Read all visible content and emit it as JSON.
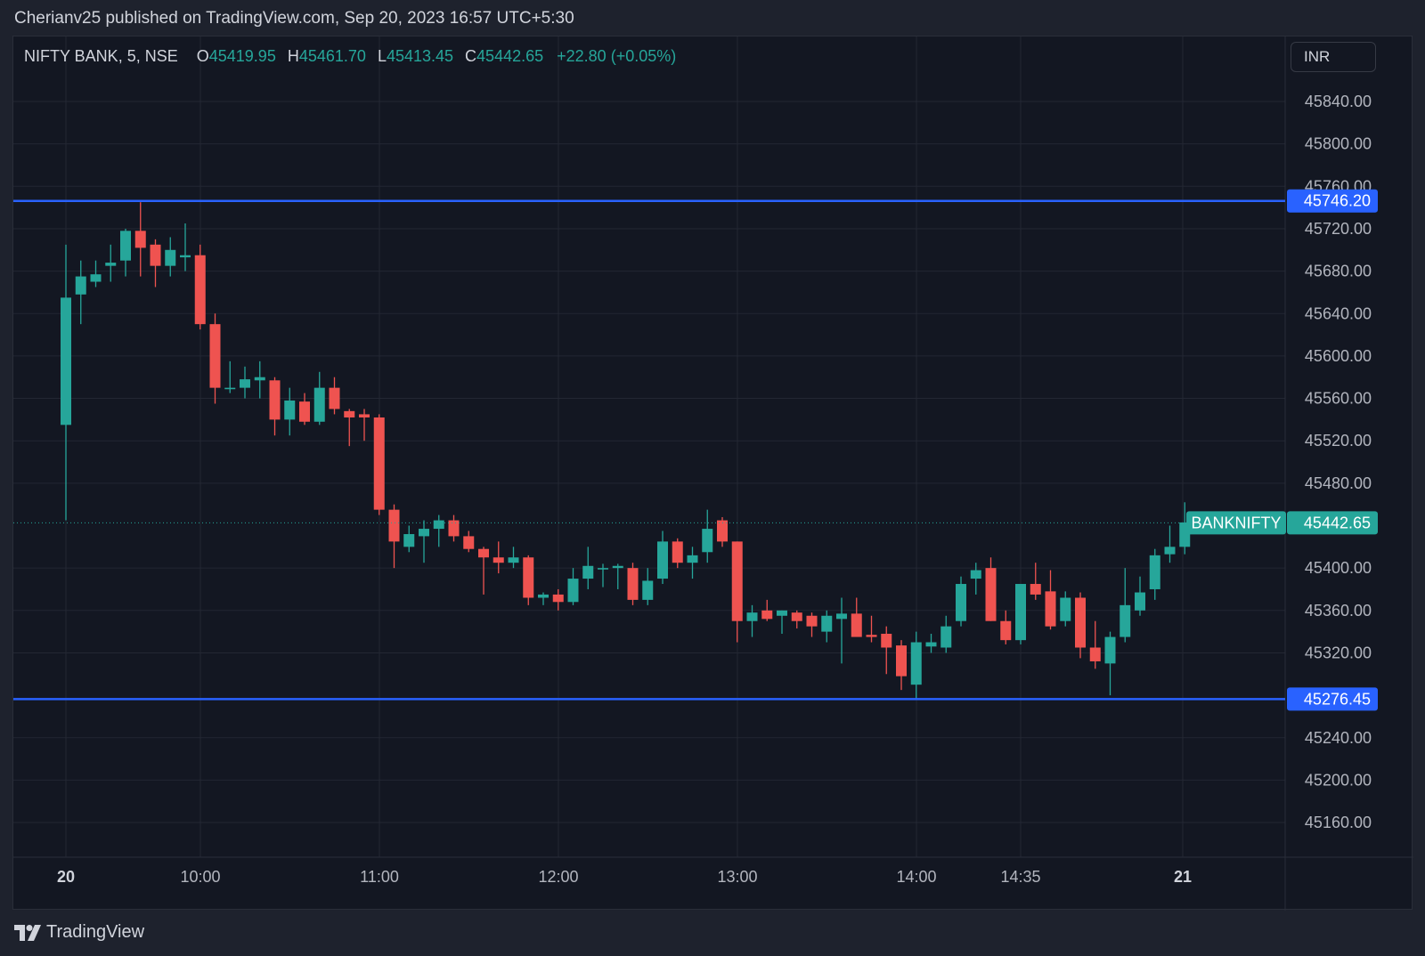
{
  "header": {
    "publisher_line": "Cherianv25 published on TradingView.com, Sep 20, 2023 16:57 UTC+5:30"
  },
  "legend": {
    "symbol": "NIFTY BANK, 5, NSE",
    "open_label": "O",
    "open": "45419.95",
    "high_label": "H",
    "high": "45461.70",
    "low_label": "L",
    "low": "45413.45",
    "close_label": "C",
    "close": "45442.65",
    "change": "+22.80 (+0.05%)"
  },
  "currency_button": "INR",
  "footer": {
    "brand": "TradingView"
  },
  "colors": {
    "background": "#131722",
    "up": "#26a69a",
    "down": "#ef5350",
    "level_line": "#2962ff",
    "grid": "#232733"
  },
  "chart_data": {
    "type": "candlestick",
    "x_ticks": [
      "20",
      "10:00",
      "11:00",
      "12:00",
      "13:00",
      "14:00",
      "14:35",
      "21"
    ],
    "y_ticks": [
      "45160.00",
      "45200.00",
      "45240.00",
      "45320.00",
      "45360.00",
      "45400.00",
      "45480.00",
      "45520.00",
      "45560.00",
      "45600.00",
      "45640.00",
      "45680.00",
      "45720.00",
      "45760.00",
      "45800.00",
      "45840.00"
    ],
    "ylim": [
      45100,
      45870
    ],
    "grid": true,
    "horizontal_levels": [
      {
        "value": 45746.2,
        "label": "45746.20"
      },
      {
        "value": 45276.45,
        "label": "45276.45"
      }
    ],
    "last_price": {
      "value": 45442.65,
      "label": "45442.65",
      "symbol_label": "BANKNIFTY"
    },
    "candles": [
      {
        "o": 45535,
        "h": 45705,
        "l": 45445,
        "c": 45655
      },
      {
        "o": 45658,
        "h": 45690,
        "l": 45630,
        "c": 45675
      },
      {
        "o": 45670,
        "h": 45690,
        "l": 45665,
        "c": 45677
      },
      {
        "o": 45685,
        "h": 45705,
        "l": 45670,
        "c": 45688
      },
      {
        "o": 45690,
        "h": 45720,
        "l": 45675,
        "c": 45718
      },
      {
        "o": 45718,
        "h": 45745,
        "l": 45675,
        "c": 45702
      },
      {
        "o": 45705,
        "h": 45710,
        "l": 45665,
        "c": 45685
      },
      {
        "o": 45685,
        "h": 45712,
        "l": 45675,
        "c": 45700
      },
      {
        "o": 45693,
        "h": 45725,
        "l": 45680,
        "c": 45695
      },
      {
        "o": 45695,
        "h": 45705,
        "l": 45625,
        "c": 45630
      },
      {
        "o": 45630,
        "h": 45640,
        "l": 45555,
        "c": 45570
      },
      {
        "o": 45570,
        "h": 45595,
        "l": 45565,
        "c": 45570
      },
      {
        "o": 45570,
        "h": 45590,
        "l": 45560,
        "c": 45578
      },
      {
        "o": 45577,
        "h": 45595,
        "l": 45560,
        "c": 45580
      },
      {
        "o": 45577,
        "h": 45580,
        "l": 45525,
        "c": 45540
      },
      {
        "o": 45540,
        "h": 45570,
        "l": 45525,
        "c": 45558
      },
      {
        "o": 45557,
        "h": 45565,
        "l": 45535,
        "c": 45538
      },
      {
        "o": 45538,
        "h": 45585,
        "l": 45535,
        "c": 45570
      },
      {
        "o": 45570,
        "h": 45580,
        "l": 45545,
        "c": 45550
      },
      {
        "o": 45548,
        "h": 45550,
        "l": 45515,
        "c": 45542
      },
      {
        "o": 45545,
        "h": 45550,
        "l": 45520,
        "c": 45542
      },
      {
        "o": 45542,
        "h": 45545,
        "l": 45450,
        "c": 45455
      },
      {
        "o": 45455,
        "h": 45460,
        "l": 45400,
        "c": 45425
      },
      {
        "o": 45420,
        "h": 45440,
        "l": 45415,
        "c": 45432
      },
      {
        "o": 45430,
        "h": 45445,
        "l": 45405,
        "c": 45437
      },
      {
        "o": 45437,
        "h": 45450,
        "l": 45420,
        "c": 45445
      },
      {
        "o": 45445,
        "h": 45450,
        "l": 45425,
        "c": 45430
      },
      {
        "o": 45430,
        "h": 45435,
        "l": 45415,
        "c": 45418
      },
      {
        "o": 45418,
        "h": 45420,
        "l": 45375,
        "c": 45410
      },
      {
        "o": 45410,
        "h": 45425,
        "l": 45395,
        "c": 45405
      },
      {
        "o": 45405,
        "h": 45420,
        "l": 45400,
        "c": 45410
      },
      {
        "o": 45410,
        "h": 45412,
        "l": 45365,
        "c": 45372
      },
      {
        "o": 45372,
        "h": 45377,
        "l": 45365,
        "c": 45375
      },
      {
        "o": 45375,
        "h": 45380,
        "l": 45360,
        "c": 45368
      },
      {
        "o": 45368,
        "h": 45400,
        "l": 45365,
        "c": 45390
      },
      {
        "o": 45390,
        "h": 45420,
        "l": 45380,
        "c": 45402
      },
      {
        "o": 45400,
        "h": 45404,
        "l": 45382,
        "c": 45400
      },
      {
        "o": 45400,
        "h": 45404,
        "l": 45380,
        "c": 45402
      },
      {
        "o": 45400,
        "h": 45405,
        "l": 45365,
        "c": 45370
      },
      {
        "o": 45370,
        "h": 45400,
        "l": 45365,
        "c": 45388
      },
      {
        "o": 45390,
        "h": 45435,
        "l": 45385,
        "c": 45425
      },
      {
        "o": 45425,
        "h": 45428,
        "l": 45400,
        "c": 45405
      },
      {
        "o": 45405,
        "h": 45420,
        "l": 45390,
        "c": 45412
      },
      {
        "o": 45415,
        "h": 45455,
        "l": 45405,
        "c": 45437
      },
      {
        "o": 45445,
        "h": 45448,
        "l": 45420,
        "c": 45425
      },
      {
        "o": 45425,
        "h": 45425,
        "l": 45330,
        "c": 45350
      },
      {
        "o": 45350,
        "h": 45365,
        "l": 45335,
        "c": 45358
      },
      {
        "o": 45360,
        "h": 45370,
        "l": 45350,
        "c": 45352
      },
      {
        "o": 45355,
        "h": 45360,
        "l": 45338,
        "c": 45360
      },
      {
        "o": 45358,
        "h": 45360,
        "l": 45343,
        "c": 45350
      },
      {
        "o": 45355,
        "h": 45358,
        "l": 45335,
        "c": 45345
      },
      {
        "o": 45340,
        "h": 45360,
        "l": 45330,
        "c": 45355
      },
      {
        "o": 45352,
        "h": 45372,
        "l": 45310,
        "c": 45357
      },
      {
        "o": 45357,
        "h": 45372,
        "l": 45340,
        "c": 45335
      },
      {
        "o": 45337,
        "h": 45355,
        "l": 45330,
        "c": 45335
      },
      {
        "o": 45338,
        "h": 45345,
        "l": 45300,
        "c": 45325
      },
      {
        "o": 45327,
        "h": 45332,
        "l": 45285,
        "c": 45298
      },
      {
        "o": 45290,
        "h": 45340,
        "l": 45276,
        "c": 45330
      },
      {
        "o": 45326,
        "h": 45338,
        "l": 45320,
        "c": 45330
      },
      {
        "o": 45325,
        "h": 45355,
        "l": 45320,
        "c": 45345
      },
      {
        "o": 45350,
        "h": 45392,
        "l": 45345,
        "c": 45385
      },
      {
        "o": 45390,
        "h": 45405,
        "l": 45375,
        "c": 45398
      },
      {
        "o": 45400,
        "h": 45410,
        "l": 45350,
        "c": 45350
      },
      {
        "o": 45350,
        "h": 45360,
        "l": 45328,
        "c": 45332
      },
      {
        "o": 45332,
        "h": 45385,
        "l": 45328,
        "c": 45385
      },
      {
        "o": 45385,
        "h": 45405,
        "l": 45370,
        "c": 45375
      },
      {
        "o": 45378,
        "h": 45398,
        "l": 45342,
        "c": 45345
      },
      {
        "o": 45350,
        "h": 45378,
        "l": 45345,
        "c": 45372
      },
      {
        "o": 45372,
        "h": 45377,
        "l": 45315,
        "c": 45325
      },
      {
        "o": 45325,
        "h": 45350,
        "l": 45305,
        "c": 45312
      },
      {
        "o": 45310,
        "h": 45340,
        "l": 45280,
        "c": 45335
      },
      {
        "o": 45335,
        "h": 45400,
        "l": 45330,
        "c": 45365
      },
      {
        "o": 45360,
        "h": 45392,
        "l": 45355,
        "c": 45377
      },
      {
        "o": 45380,
        "h": 45418,
        "l": 45370,
        "c": 45412
      },
      {
        "o": 45413,
        "h": 45440,
        "l": 45405,
        "c": 45420
      },
      {
        "o": 45420,
        "h": 45462,
        "l": 45413,
        "c": 45443
      }
    ]
  }
}
